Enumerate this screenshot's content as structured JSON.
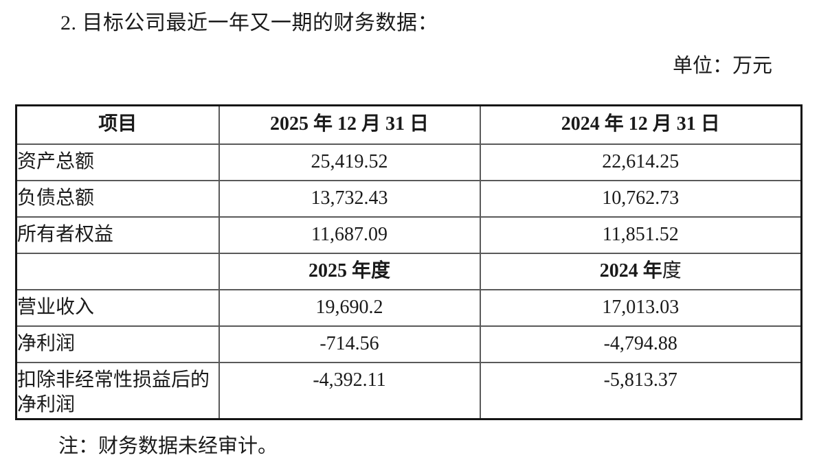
{
  "document": {
    "title": "2. 目标公司最近一年又一期的财务数据：",
    "unit_label": "单位：万元",
    "footnote": "注：财务数据未经审计。"
  },
  "table": {
    "columns": [
      "项目",
      "2025 年 12 月 31 日",
      "2024 年 12 月 31 日"
    ],
    "balance_rows": [
      {
        "item": "资产总额",
        "y2025": "25,419.52",
        "y2024": "22,614.25"
      },
      {
        "item": "负债总额",
        "y2025": "13,732.43",
        "y2024": "10,762.73"
      },
      {
        "item": "所有者权益",
        "y2025": "11,687.09",
        "y2024": "11,851.52"
      }
    ],
    "period_header": {
      "y2025": "2025 年度",
      "y2024_bold": "2024 年",
      "y2024_regular": "度"
    },
    "income_rows": [
      {
        "item": "营业收入",
        "y2025": "19,690.2",
        "y2024": "17,013.03"
      },
      {
        "item": "净利润",
        "y2025": "-714.56",
        "y2024": "-4,794.88"
      },
      {
        "item": "扣除非经常性损益后的净利润",
        "y2025": "-4,392.11",
        "y2024": "-5,813.37"
      }
    ]
  }
}
